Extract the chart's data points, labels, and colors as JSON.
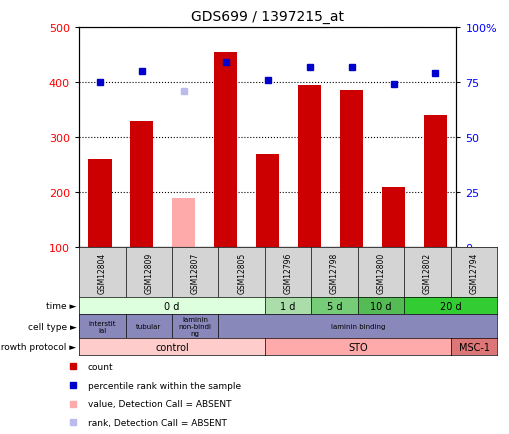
{
  "title": "GDS699 / 1397215_at",
  "samples": [
    "GSM12804",
    "GSM12809",
    "GSM12807",
    "GSM12805",
    "GSM12796",
    "GSM12798",
    "GSM12800",
    "GSM12802",
    "GSM12794"
  ],
  "bar_values": [
    260,
    330,
    190,
    455,
    270,
    395,
    385,
    210,
    340
  ],
  "bar_absent": [
    false,
    false,
    true,
    false,
    false,
    false,
    false,
    false,
    false
  ],
  "percentile_values": [
    75,
    80,
    71,
    84,
    76,
    82,
    82,
    74,
    79
  ],
  "percentile_absent": [
    false,
    false,
    true,
    false,
    false,
    false,
    false,
    false,
    false
  ],
  "ylim_left": [
    100,
    500
  ],
  "ylim_right": [
    0,
    100
  ],
  "yticks_left": [
    100,
    200,
    300,
    400,
    500
  ],
  "yticks_right": [
    0,
    25,
    50,
    75,
    100
  ],
  "bar_color_present": "#cc0000",
  "bar_color_absent": "#ffaaaa",
  "dot_color_present": "#0000cc",
  "dot_color_absent": "#bbbbee",
  "time_labels": [
    {
      "text": "0 d",
      "span": [
        0,
        4
      ],
      "color": "#ddffdd"
    },
    {
      "text": "1 d",
      "span": [
        4,
        5
      ],
      "color": "#aaddaa"
    },
    {
      "text": "5 d",
      "span": [
        5,
        6
      ],
      "color": "#77cc77"
    },
    {
      "text": "10 d",
      "span": [
        6,
        7
      ],
      "color": "#55bb55"
    },
    {
      "text": "20 d",
      "span": [
        7,
        9
      ],
      "color": "#33cc33"
    }
  ],
  "cell_type_labels": [
    {
      "text": "interstit\nial",
      "span": [
        0,
        1
      ],
      "color": "#8888bb"
    },
    {
      "text": "tubular",
      "span": [
        1,
        2
      ],
      "color": "#8888bb"
    },
    {
      "text": "laminin\nnon-bindi\nng",
      "span": [
        2,
        3
      ],
      "color": "#8888bb"
    },
    {
      "text": "laminin binding",
      "span": [
        3,
        9
      ],
      "color": "#8888bb"
    }
  ],
  "growth_protocol_labels": [
    {
      "text": "control",
      "span": [
        0,
        4
      ],
      "color": "#ffcccc"
    },
    {
      "text": "STO",
      "span": [
        4,
        8
      ],
      "color": "#ffaaaa"
    },
    {
      "text": "MSC-1",
      "span": [
        8,
        9
      ],
      "color": "#dd7777"
    }
  ],
  "row_labels": [
    "time",
    "cell type",
    "growth protocol"
  ],
  "legend_items": [
    {
      "label": "count",
      "color": "#cc0000"
    },
    {
      "label": "percentile rank within the sample",
      "color": "#0000cc"
    },
    {
      "label": "value, Detection Call = ABSENT",
      "color": "#ffaaaa"
    },
    {
      "label": "rank, Detection Call = ABSENT",
      "color": "#bbbbee"
    }
  ]
}
